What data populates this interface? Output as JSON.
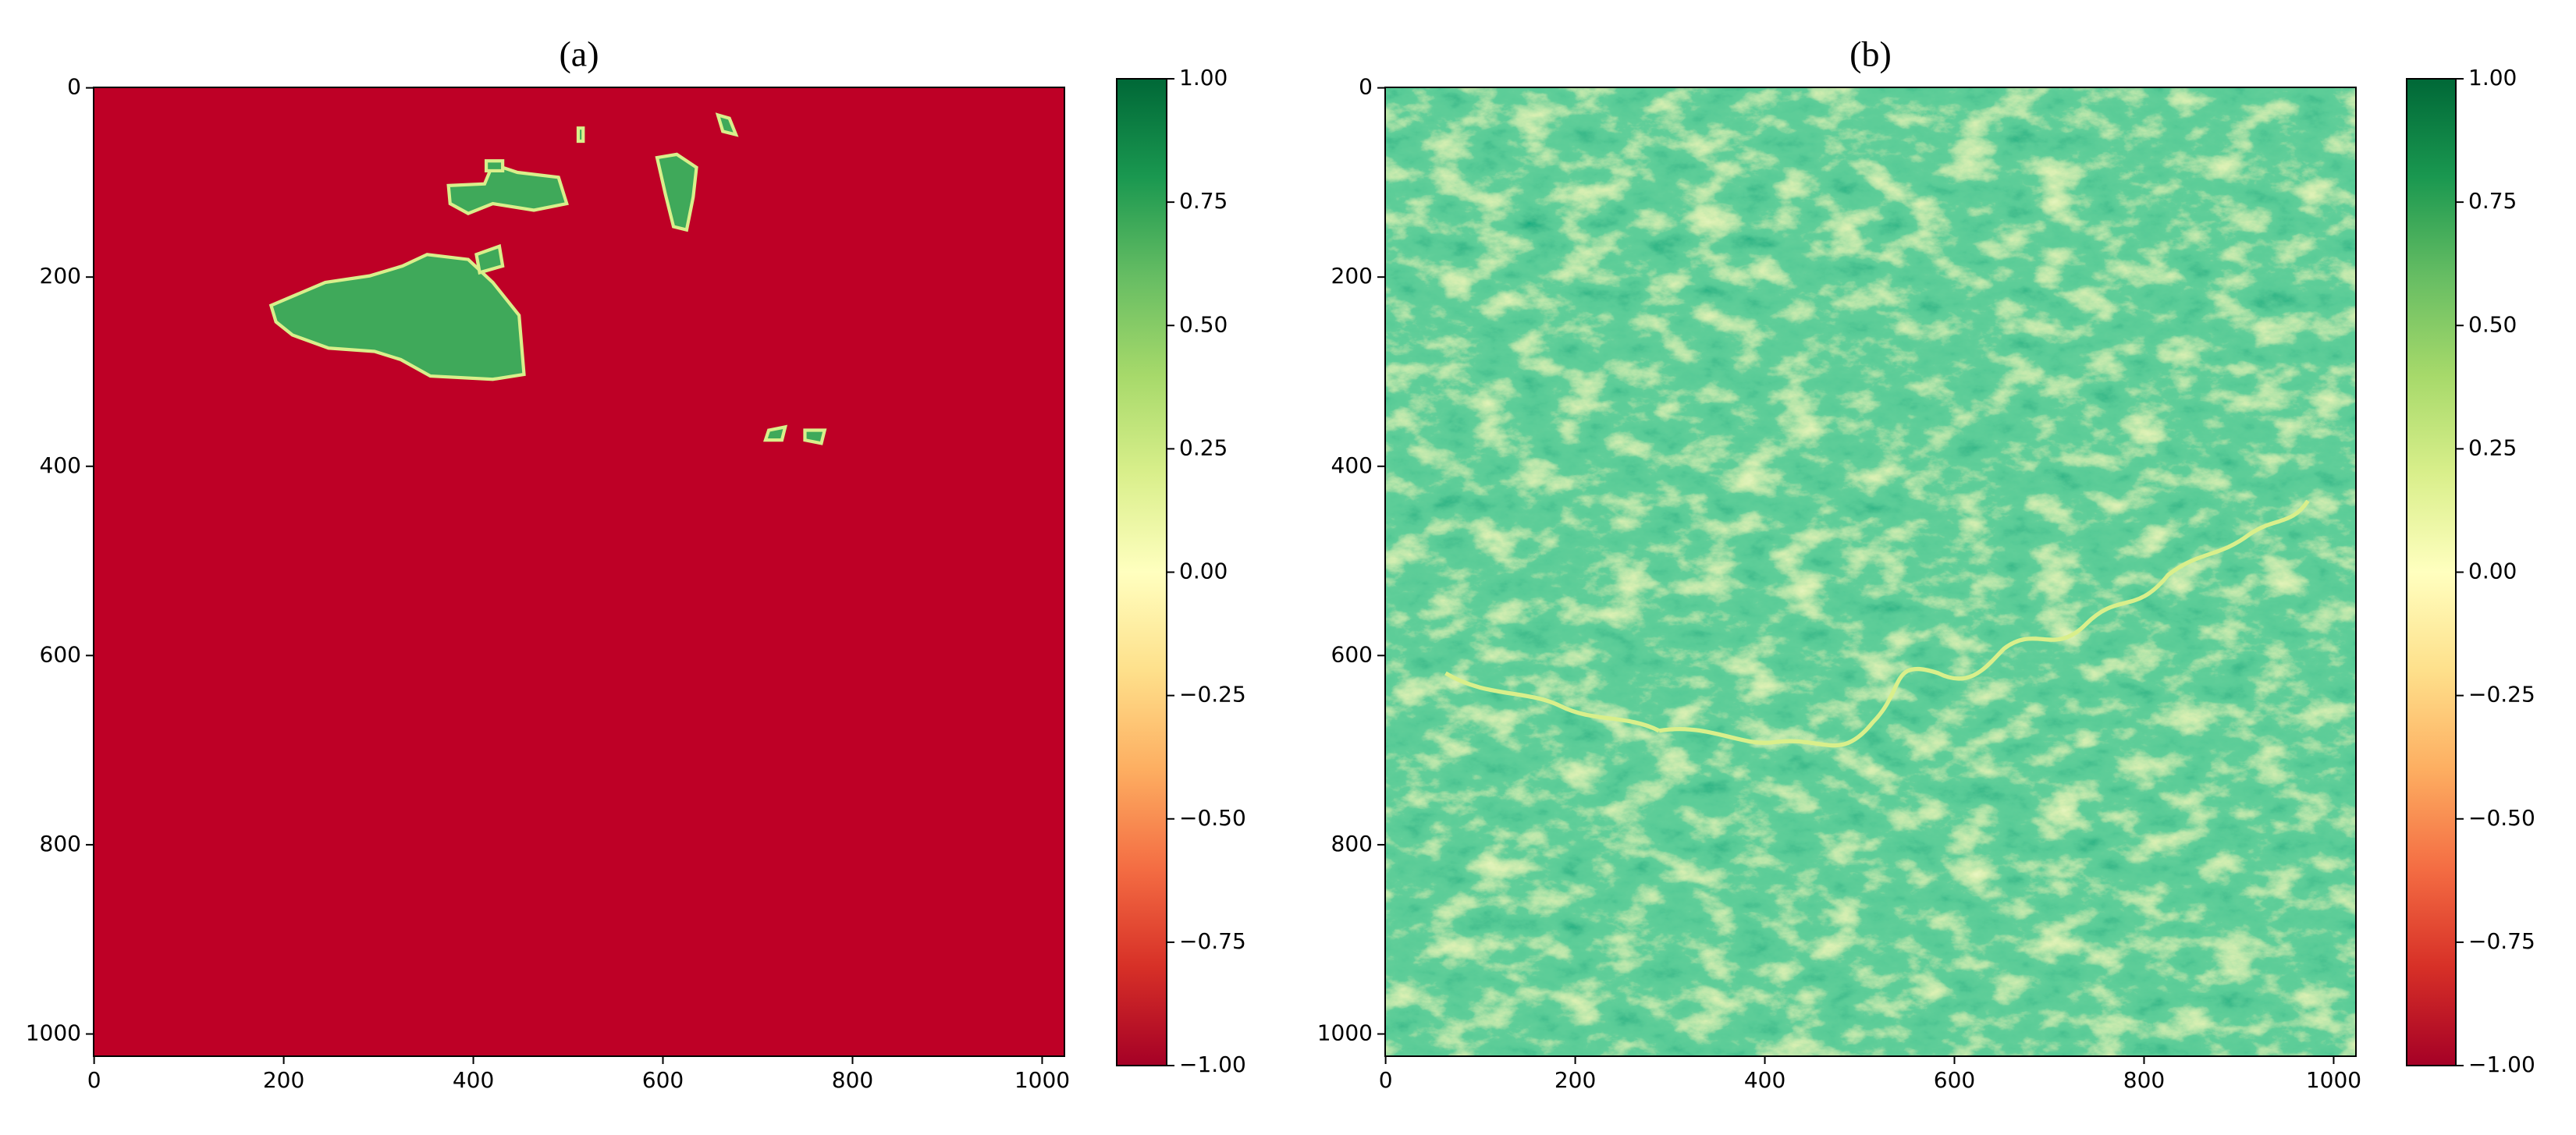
{
  "chart_data": [
    {
      "type": "image",
      "title": "(a)",
      "xlim": [
        -0.5,
        1023.5
      ],
      "ylim": [
        1023.5,
        -0.5
      ],
      "xticks": [
        0,
        200,
        400,
        600,
        800,
        1000
      ],
      "yticks": [
        0,
        200,
        400,
        600,
        800,
        1000
      ],
      "colormap": [
        "#a50026",
        "#d73027",
        "#f46d43",
        "#fdae61",
        "#fee08b",
        "#ffffbf",
        "#d9ef8b",
        "#a6d96a",
        "#66bd63",
        "#1a9850",
        "#006837"
      ],
      "clim": [
        -1,
        1
      ],
      "cticks": [
        {
          "value": 1,
          "label": "1.00"
        },
        0.75,
        {
          "value": 0.5,
          "label": "0.50"
        },
        0.25,
        {
          "value": 0,
          "label": "0.00"
        },
        {
          "value": -0.25,
          "label": "−0.25"
        },
        {
          "value": -0.5,
          "label": "−0.50"
        },
        {
          "value": -0.75,
          "label": "−0.75"
        },
        {
          "value": -1,
          "label": "−1.00"
        }
      ]
    },
    {
      "type": "image",
      "title": "(b)",
      "xlim": [
        -0.5,
        1023.5
      ],
      "ylim": [
        1023.5,
        -0.5
      ],
      "xticks": [
        0,
        200,
        400,
        600,
        800,
        1000
      ],
      "yticks": [
        0,
        200,
        400,
        600,
        800,
        1000
      ],
      "colormap": [
        "#a50026",
        "#d73027",
        "#f46d43",
        "#fdae61",
        "#fee08b",
        "#ffffbf",
        "#d9ef8b",
        "#a6d96a",
        "#66bd63",
        "#1a9850",
        "#006837"
      ],
      "clim": [
        -1,
        1
      ],
      "cticks": [
        {
          "value": 1,
          "label": "1.00"
        },
        0.75,
        {
          "value": 0.5,
          "label": "0.50"
        },
        0.25,
        {
          "value": 0,
          "label": "0.00"
        },
        {
          "value": -0.25,
          "label": "−0.25"
        },
        {
          "value": -0.5,
          "label": "−0.50"
        },
        {
          "value": -0.75,
          "label": "−0.75"
        },
        {
          "value": -1,
          "label": "−1.00"
        }
      ]
    }
  ]
}
